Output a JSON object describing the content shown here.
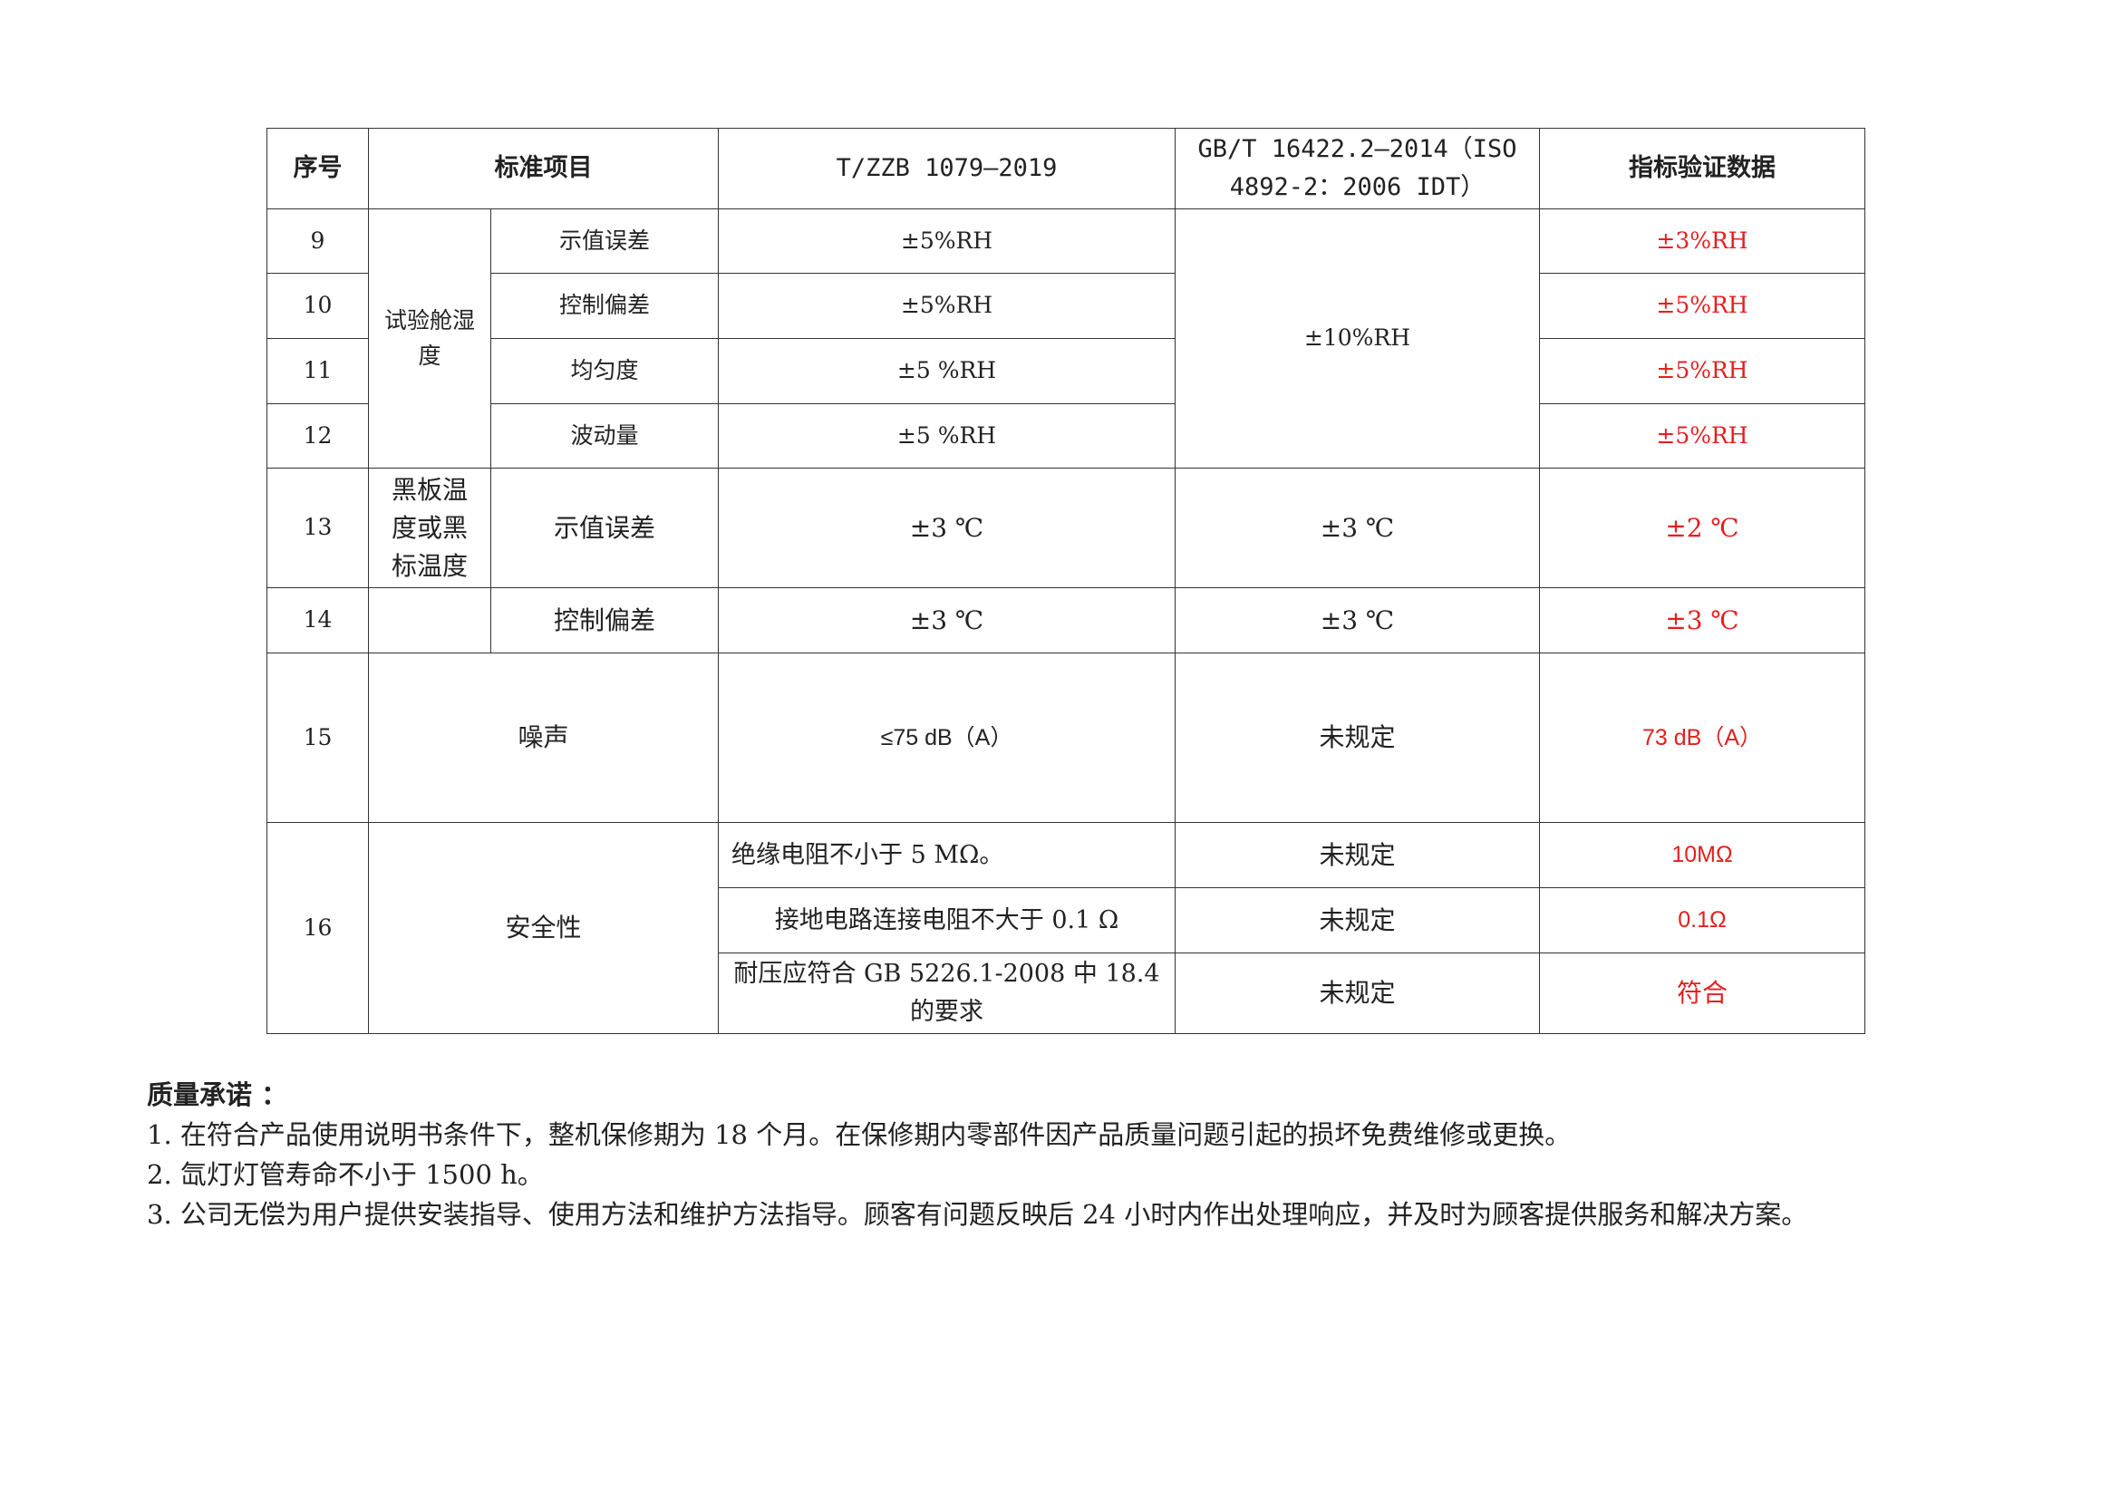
{
  "table": {
    "headers": [
      "序号",
      "标准项目",
      "T/ZZB 1079—2019",
      "GB/T 16422.2—2014（ISO 4892-2：2006 IDT）",
      "指标验证数据"
    ],
    "humidity_group": "试验舱湿度",
    "humidity_std_gb": "±10%RH",
    "blackboard_group": "黑板温度或黑标温度",
    "rows": [
      {
        "no": "9",
        "item": "示值误差",
        "tzzb": "±5%RH",
        "verify": "±3%RH"
      },
      {
        "no": "10",
        "item": "控制偏差",
        "tzzb": "±5%RH",
        "verify": "±5%RH"
      },
      {
        "no": "11",
        "item": "均匀度",
        "tzzb": "±5 %RH",
        "verify": "±5%RH"
      },
      {
        "no": "12",
        "item": "波动量",
        "tzzb": "±5 %RH",
        "verify": "±5%RH"
      },
      {
        "no": "13",
        "item": "示值误差",
        "tzzb": "±3 ℃",
        "gb": "±3 ℃",
        "verify": "±2 ℃"
      },
      {
        "no": "14",
        "item": "控制偏差",
        "tzzb": "±3 ℃",
        "gb": "±3 ℃",
        "verify": "±3 ℃"
      },
      {
        "no": "15",
        "item": "噪声",
        "tzzb": "≤75 dB（A）",
        "gb": "未规定",
        "verify": "73 dB（A）"
      },
      {
        "no": "16",
        "item": "安全性",
        "sub": [
          {
            "tzzb": "绝缘电阻不小于 5 MΩ。",
            "gb": "未规定",
            "verify": "10MΩ"
          },
          {
            "tzzb": "接地电路连接电阻不大于 0.1 Ω",
            "gb": "未规定",
            "verify": "0.1Ω"
          },
          {
            "tzzb": "耐压应符合 GB 5226.1-2008 中 18.4 的要求",
            "gb": "未规定",
            "verify": "符合"
          }
        ]
      }
    ]
  },
  "notes": {
    "title": "质量承诺 ：",
    "items": [
      "1. 在符合产品使用说明书条件下，整机保修期为 18 个月。在保修期内零部件因产品质量问题引起的损坏免费维修或更换。",
      "2. 氙灯灯管寿命不小于 1500 h。",
      "3. 公司无偿为用户提供安装指导、使用方法和维护方法指导。顾客有问题反映后 24 小时内作出处理响应，并及时为顾客提供服务和解决方案。"
    ]
  },
  "colors": {
    "verify_text": "#e61e1e",
    "border": "#333333"
  }
}
